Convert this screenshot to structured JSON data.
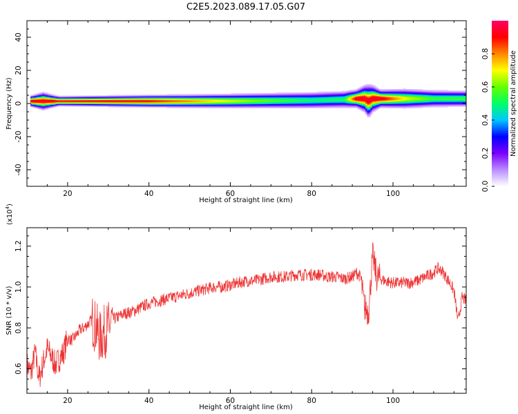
{
  "figure_title": "C2E5.2023.089.17.05.G07",
  "chart_data": [
    {
      "type": "heatmap",
      "title": "C2E5.2023.089.17.05.G07",
      "xlabel": "Height of straight line (km)",
      "ylabel": "Frequency (Hz)",
      "xlim": [
        10,
        118
      ],
      "ylim": [
        -50,
        50
      ],
      "xticks": [
        20,
        40,
        60,
        80,
        100
      ],
      "yticks": [
        -40,
        -20,
        0,
        20,
        40
      ],
      "xtick_labels": [
        "20",
        "40",
        "60",
        "80",
        "100"
      ],
      "ytick_labels": [
        "-40",
        "-20",
        "0",
        "20",
        "40"
      ],
      "colorbar": {
        "label": "Normalized spectral amplitude",
        "range": [
          0.0,
          1.0
        ],
        "ticks": [
          0.0,
          0.2,
          0.4,
          0.6,
          0.8
        ],
        "tick_labels": [
          "0.0",
          "0.2",
          "0.4",
          "0.6",
          "0.8"
        ],
        "colors": [
          "#ffffff",
          "#b98cff",
          "#7a00ff",
          "#0000ff",
          "#00c8ff",
          "#00ff66",
          "#66ff00",
          "#ffff00",
          "#ff8800",
          "#ff0000",
          "#ff0066"
        ]
      },
      "band_profile": {
        "height_km": [
          11,
          14,
          16,
          18,
          30,
          40,
          50,
          60,
          70,
          80,
          88,
          91,
          93,
          94,
          95,
          97,
          103,
          110,
          118
        ],
        "peak_freq_hz": [
          1.5,
          1.5,
          1.5,
          1.5,
          1.5,
          1.5,
          1.5,
          1.6,
          1.8,
          2.0,
          2.5,
          3.0,
          3.0,
          1.5,
          3.0,
          3.0,
          3.0,
          3.0,
          3.0
        ],
        "half_width_hz": [
          2.5,
          4.0,
          3.0,
          2.2,
          2.5,
          2.8,
          3.0,
          3.3,
          3.6,
          3.9,
          4.0,
          4.0,
          6.0,
          7.5,
          6.0,
          4.0,
          4.5,
          4.0,
          3.8
        ],
        "peak_amplitude": [
          0.95,
          0.95,
          0.95,
          0.9,
          0.92,
          0.9,
          0.8,
          0.68,
          0.58,
          0.5,
          0.52,
          0.95,
          0.95,
          0.95,
          0.95,
          0.95,
          0.7,
          0.55,
          0.55
        ]
      }
    },
    {
      "type": "line",
      "xlabel": "Height of straight line (km)",
      "ylabel": "SNR (10 * v/v)",
      "y_multiplier_label": "(x10",
      "y_multiplier_exp": "4",
      "y_multiplier_close": ")",
      "xlim": [
        10,
        118
      ],
      "ylim": [
        0.48,
        1.29
      ],
      "y_units": "x10^4",
      "xticks": [
        20,
        40,
        60,
        80,
        100
      ],
      "yticks": [
        0.6,
        0.8,
        1.0,
        1.2
      ],
      "xtick_labels": [
        "20",
        "40",
        "60",
        "80",
        "100"
      ],
      "ytick_labels": [
        "0.6",
        "0.8",
        "1.0",
        "1.2"
      ],
      "series": [
        {
          "name": "SNR",
          "color": "#ee3333",
          "x": [
            10,
            11,
            12,
            13,
            14,
            15,
            16,
            17,
            18,
            19,
            20,
            21,
            22,
            23,
            24,
            25,
            26,
            27,
            28,
            29,
            30,
            31,
            32,
            34,
            36,
            38,
            40,
            42,
            44,
            46,
            48,
            50,
            52,
            54,
            56,
            58,
            60,
            62,
            64,
            66,
            68,
            70,
            72,
            74,
            76,
            78,
            80,
            82,
            84,
            86,
            88,
            90,
            91,
            92,
            93,
            94,
            95,
            96,
            97,
            98,
            100,
            102,
            104,
            106,
            108,
            110,
            111,
            112,
            113,
            114,
            115,
            116,
            117,
            118
          ],
          "y": [
            0.62,
            0.58,
            0.68,
            0.55,
            0.63,
            0.7,
            0.66,
            0.62,
            0.65,
            0.68,
            0.75,
            0.74,
            0.76,
            0.79,
            0.8,
            0.82,
            0.84,
            0.8,
            0.75,
            0.78,
            0.8,
            0.84,
            0.85,
            0.87,
            0.88,
            0.9,
            0.92,
            0.93,
            0.94,
            0.95,
            0.96,
            0.97,
            0.98,
            0.99,
            1.0,
            1.0,
            1.01,
            1.02,
            1.03,
            1.03,
            1.04,
            1.05,
            1.05,
            1.05,
            1.06,
            1.06,
            1.06,
            1.06,
            1.05,
            1.05,
            1.04,
            1.05,
            1.07,
            1.05,
            0.9,
            0.88,
            1.15,
            1.05,
            1.04,
            1.03,
            1.02,
            1.02,
            1.02,
            1.03,
            1.05,
            1.07,
            1.09,
            1.08,
            1.05,
            1.02,
            0.98,
            0.83,
            0.95,
            0.93
          ],
          "noise_amplitude": 0.03
        }
      ]
    }
  ]
}
